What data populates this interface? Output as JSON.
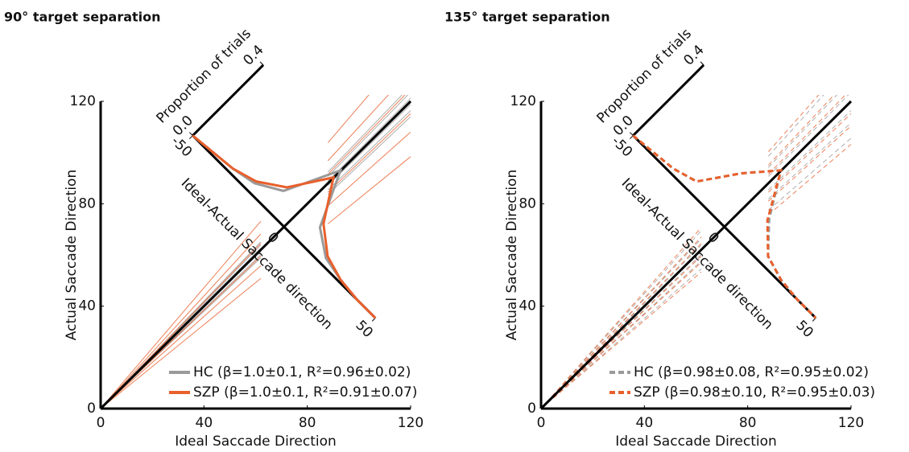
{
  "chart_data": [
    {
      "type": "line",
      "title": "90° target separation",
      "xlabel": "Ideal Saccade Direction",
      "ylabel": "Actual Saccade Direction",
      "xlim": [
        0,
        120
      ],
      "ylim": [
        0,
        120
      ],
      "xticks": [
        0,
        40,
        80,
        120
      ],
      "yticks": [
        0,
        40,
        80,
        120
      ],
      "dist_xlabel": "Ideal-Actual Saccade direction",
      "dist_ylabel": "Proportion of trials",
      "dist_xlim": [
        -50,
        50
      ],
      "dist_xticks": [
        -50,
        0,
        50
      ],
      "dist_ylim": [
        0,
        0.4
      ],
      "dist_yticks": [
        {
          "value": 0,
          "label": "0.0"
        },
        0.4
      ],
      "dist_x": [
        -50,
        -40,
        -30,
        -20,
        -10,
        0,
        10,
        20,
        30,
        40,
        50
      ],
      "dashed": false,
      "series": [
        {
          "name": "HC (β=1.0±0.1, R²=0.96±0.02)",
          "color": "#9a9a9a",
          "slopes": [
            0.95,
            0.97,
            0.99,
            1.0,
            1.01,
            1.03,
            1.05
          ],
          "dist": [
            0,
            0.01,
            0.02,
            0.04,
            0.1,
            0.32,
            0.1,
            0.03,
            0.01,
            0,
            0
          ]
        },
        {
          "name": "SZP (β=1.0±0.1, R²=0.91±0.07)",
          "color": "#e8602c",
          "slopes": [
            0.82,
            0.9,
            0.96,
            1.0,
            1.04,
            1.1,
            1.18
          ],
          "dist": [
            0,
            0.01,
            0.02,
            0.05,
            0.12,
            0.28,
            0.12,
            0.04,
            0.01,
            0,
            0
          ]
        }
      ]
    },
    {
      "type": "line",
      "title": "135° target separation",
      "xlabel": "Ideal Saccade Direction",
      "ylabel": "Actual Saccade Direction",
      "xlim": [
        0,
        120
      ],
      "ylim": [
        0,
        120
      ],
      "xticks": [
        0,
        40,
        80,
        120
      ],
      "yticks": [
        0,
        40,
        80,
        120
      ],
      "dist_xlabel": "Ideal-Actual Saccade direction",
      "dist_ylabel": "Proportion of trials",
      "dist_xlim": [
        -50,
        50
      ],
      "dist_xticks": [
        -50,
        0,
        50
      ],
      "dist_ylim": [
        0,
        0.4
      ],
      "dist_yticks": [
        {
          "value": 0,
          "label": "0.0"
        },
        0.4
      ],
      "dist_x": [
        -50,
        -40,
        -30,
        -20,
        -10,
        0,
        10,
        20,
        30,
        40,
        50
      ],
      "dashed": true,
      "series": [
        {
          "name": "HC (β=0.98±0.08, R²=0.95±0.02)",
          "color": "#9a9a9a",
          "slopes": [
            0.88,
            0.93,
            0.97,
            1.0,
            1.03,
            1.07,
            1.12
          ],
          "dist": [
            0,
            0.01,
            0.02,
            0.05,
            0.2,
            0.32,
            0.15,
            0.04,
            0.01,
            0,
            0
          ]
        },
        {
          "name": "SZP (β=0.98±0.10, R²=0.95±0.03)",
          "color": "#e8602c",
          "slopes": [
            0.86,
            0.92,
            0.96,
            1.0,
            1.04,
            1.08,
            1.14
          ],
          "dist": [
            0,
            0.01,
            0.02,
            0.05,
            0.2,
            0.32,
            0.14,
            0.04,
            0.01,
            0,
            0
          ]
        }
      ]
    }
  ]
}
